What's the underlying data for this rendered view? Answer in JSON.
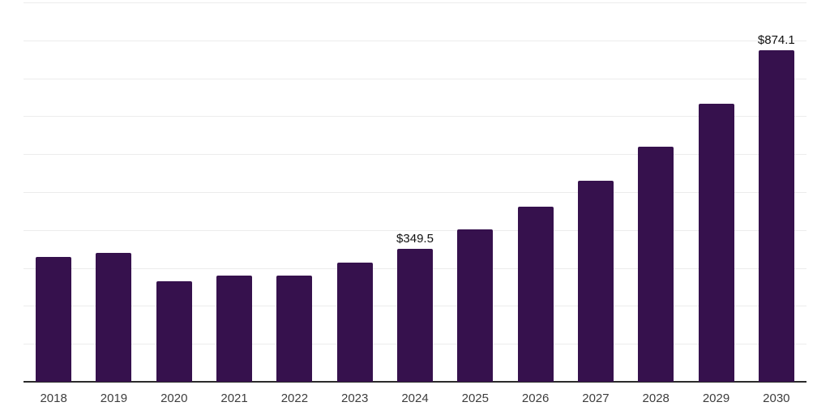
{
  "chart_data": {
    "type": "bar",
    "title": "",
    "xlabel": "",
    "ylabel": "",
    "categories": [
      "2018",
      "2019",
      "2020",
      "2021",
      "2022",
      "2023",
      "2024",
      "2025",
      "2026",
      "2027",
      "2028",
      "2029",
      "2030"
    ],
    "values": [
      330,
      339,
      264,
      280,
      281,
      315,
      349.5,
      401,
      461,
      531,
      620,
      732,
      874.1
    ],
    "data_labels": [
      {
        "index": 6,
        "text": "$349.5"
      },
      {
        "index": 12,
        "text": "$874.1"
      }
    ],
    "ylim": [
      0,
      1000
    ],
    "gridline_step": 100,
    "grid": "horizontal-only",
    "legend": "none",
    "y_tick_labels_visible": false,
    "colors": {
      "bar": "#36114D",
      "gridline": "#ececec",
      "axis_line": "#2b2b2b",
      "x_label_text": "#3d3d3d",
      "data_label_text": "#111111",
      "background": "#ffffff"
    }
  }
}
